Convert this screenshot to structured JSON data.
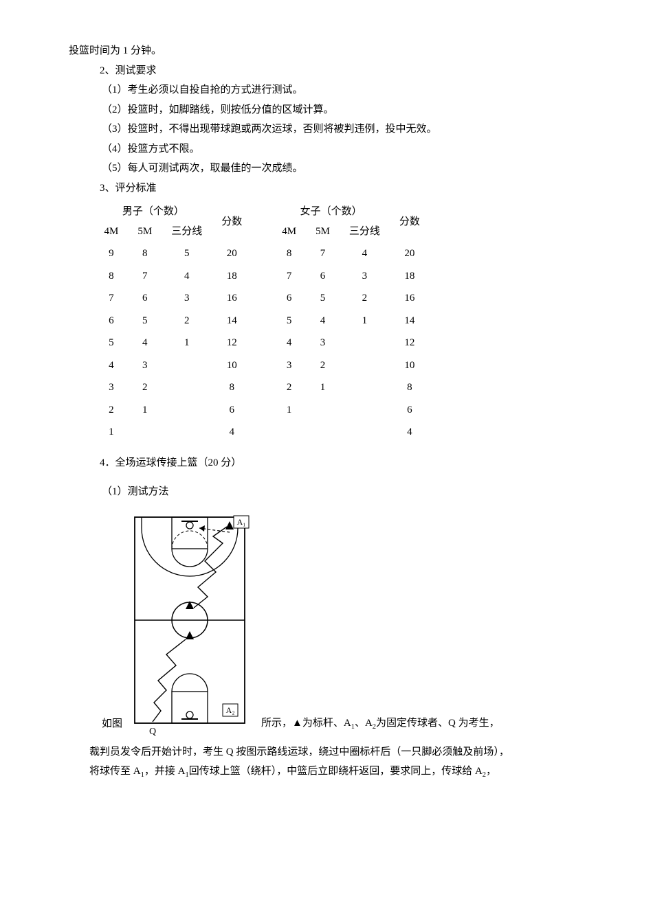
{
  "intro": "投篮时间为 1 分钟。",
  "sec2_title": "2、测试要求",
  "req1": "（1）考生必须以自投自抢的方式进行测试。",
  "req2": "（2）投篮时，如脚踏线，则按低分值的区域计算。",
  "req3": "（3）投篮时，不得出现带球跑或两次运球，否则将被判违例，投中无效。",
  "req4": "（4）投篮方式不限。",
  "req5": "（5）每人可测试两次，取最佳的一次成绩。",
  "sec3_title": "3、评分标准",
  "male": {
    "group_label": "男子（个数）",
    "score_label": "分数",
    "cols": [
      "4M",
      "5M",
      "三分线"
    ],
    "rows": [
      [
        "9",
        "8",
        "5",
        "20"
      ],
      [
        "8",
        "7",
        "4",
        "18"
      ],
      [
        "7",
        "6",
        "3",
        "16"
      ],
      [
        "6",
        "5",
        "2",
        "14"
      ],
      [
        "5",
        "4",
        "1",
        "12"
      ],
      [
        "4",
        "3",
        "",
        "10"
      ],
      [
        "3",
        "2",
        "",
        "8"
      ],
      [
        "2",
        "1",
        "",
        "6"
      ],
      [
        "1",
        "",
        "",
        "4"
      ]
    ]
  },
  "female": {
    "group_label": "女子（个数）",
    "score_label": "分数",
    "cols": [
      "4M",
      "5M",
      "三分线"
    ],
    "rows": [
      [
        "8",
        "7",
        "4",
        "20"
      ],
      [
        "7",
        "6",
        "3",
        "18"
      ],
      [
        "6",
        "5",
        "2",
        "16"
      ],
      [
        "5",
        "4",
        "1",
        "14"
      ],
      [
        "4",
        "3",
        "",
        "12"
      ],
      [
        "3",
        "2",
        "",
        "10"
      ],
      [
        "2",
        "1",
        "",
        "8"
      ],
      [
        "1",
        "",
        "",
        "6"
      ],
      [
        "",
        "",
        "",
        "4"
      ]
    ]
  },
  "sec4_title": "4．全场运球传接上篮（20 分）",
  "sec4_sub1": "（1）测试方法",
  "diag_pre": "如图",
  "diag_post_a": "所示，▲为标杆、A",
  "diag_post_b": "、A",
  "diag_post_c": "为固定传球者、Q 为考生，",
  "para2_a": "裁判员发令后开始计时，考生 Q 按图示路线运球，绕过中圈标杆后（一只脚必须触及前场），",
  "para3_a": "将球传至 A",
  "para3_b": "，并接 A",
  "para3_c": "回传球上篮（绕杆），中篮后立即绕杆返回，要求同上，传球给 A",
  "para3_d": "，",
  "diagram": {
    "labels": {
      "A1": "A₁",
      "A2": "A₂",
      "Q": "Q"
    },
    "stroke": "#000000",
    "bg": "#ffffff"
  }
}
